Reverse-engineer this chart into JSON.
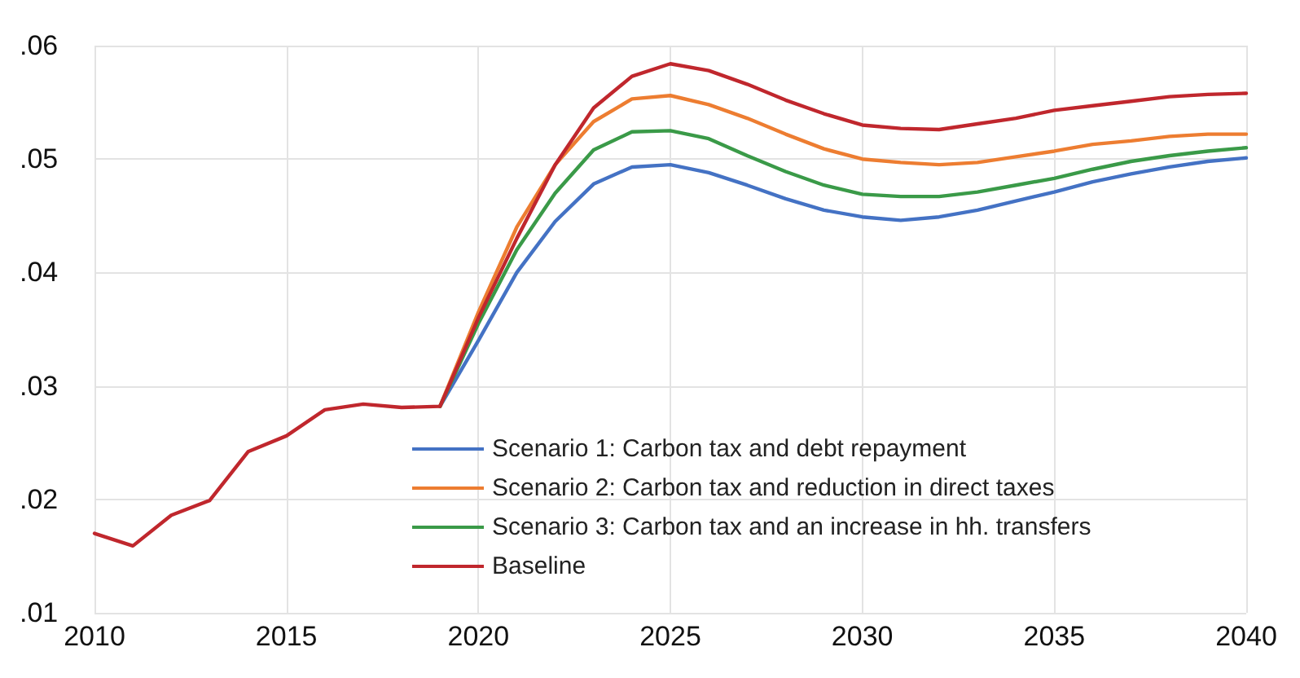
{
  "chart_data": {
    "type": "line",
    "x": [
      2010,
      2011,
      2012,
      2013,
      2014,
      2015,
      2016,
      2017,
      2018,
      2019,
      2020,
      2021,
      2022,
      2023,
      2024,
      2025,
      2026,
      2027,
      2028,
      2029,
      2030,
      2031,
      2032,
      2033,
      2034,
      2035,
      2036,
      2037,
      2038,
      2039,
      2040
    ],
    "series": [
      {
        "name": "Scenario 1: Carbon tax and debt repayment",
        "color": "#4472c4",
        "x": [
          2019,
          2020,
          2021,
          2022,
          2023,
          2024,
          2025,
          2026,
          2027,
          2028,
          2029,
          2030,
          2031,
          2032,
          2033,
          2034,
          2035,
          2036,
          2037,
          2038,
          2039,
          2040
        ],
        "values": [
          0.0282,
          0.034,
          0.04,
          0.0445,
          0.0478,
          0.0493,
          0.0495,
          0.0488,
          0.0477,
          0.0465,
          0.0455,
          0.0449,
          0.0446,
          0.0449,
          0.0455,
          0.0463,
          0.0471,
          0.048,
          0.0487,
          0.0493,
          0.0498,
          0.0501
        ]
      },
      {
        "name": "Scenario 2: Carbon tax and reduction in direct taxes",
        "color": "#ed7d31",
        "x": [
          2019,
          2020,
          2021,
          2022,
          2023,
          2024,
          2025,
          2026,
          2027,
          2028,
          2029,
          2030,
          2031,
          2032,
          2033,
          2034,
          2035,
          2036,
          2037,
          2038,
          2039,
          2040
        ],
        "values": [
          0.0282,
          0.0365,
          0.044,
          0.0495,
          0.0533,
          0.0553,
          0.0556,
          0.0548,
          0.0536,
          0.0522,
          0.0509,
          0.05,
          0.0497,
          0.0495,
          0.0497,
          0.0502,
          0.0507,
          0.0513,
          0.0516,
          0.052,
          0.0522,
          0.0522
        ]
      },
      {
        "name": "Scenario 3: Carbon tax and an increase in hh. transfers",
        "color": "#3a9a48",
        "x": [
          2019,
          2020,
          2021,
          2022,
          2023,
          2024,
          2025,
          2026,
          2027,
          2028,
          2029,
          2030,
          2031,
          2032,
          2033,
          2034,
          2035,
          2036,
          2037,
          2038,
          2039,
          2040
        ],
        "values": [
          0.0282,
          0.0355,
          0.042,
          0.047,
          0.0508,
          0.0524,
          0.0525,
          0.0518,
          0.0503,
          0.0489,
          0.0477,
          0.0469,
          0.0467,
          0.0467,
          0.0471,
          0.0477,
          0.0483,
          0.0491,
          0.0498,
          0.0503,
          0.0507,
          0.051
        ]
      },
      {
        "name": "Baseline",
        "color": "#c0272d",
        "values": [
          0.017,
          0.0159,
          0.0186,
          0.0199,
          0.0242,
          0.0256,
          0.0279,
          0.0284,
          0.0281,
          0.0282,
          0.036,
          0.043,
          0.0495,
          0.0545,
          0.0573,
          0.0584,
          0.0578,
          0.0566,
          0.0552,
          0.054,
          0.053,
          0.0527,
          0.0526,
          0.0531,
          0.0536,
          0.0543,
          0.0547,
          0.0551,
          0.0555,
          0.0557,
          0.0558
        ]
      }
    ],
    "xlim": [
      2010,
      2040
    ],
    "xticks": [
      2010,
      2015,
      2020,
      2025,
      2030,
      2035,
      2040
    ],
    "ylim": [
      0.01,
      0.06
    ],
    "yticks": [
      {
        "value": 0.01,
        "label": ".01"
      },
      {
        "value": 0.02,
        "label": ".02"
      },
      {
        "value": 0.03,
        "label": ".03"
      },
      {
        "value": 0.04,
        "label": ".04"
      },
      {
        "value": 0.05,
        "label": ".05"
      },
      {
        "value": 0.06,
        "label": ".06"
      }
    ],
    "grid": true,
    "legend": "bottom",
    "marker": "none",
    "line_style": "solid"
  }
}
